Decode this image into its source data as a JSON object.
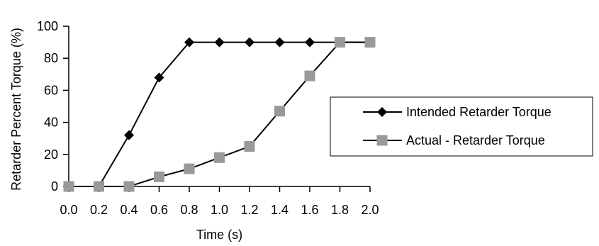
{
  "chart_data": {
    "type": "line",
    "xlabel": "Time (s)",
    "ylabel": "Retarder Percent Torque (%)",
    "x": [
      0.0,
      0.2,
      0.4,
      0.6,
      0.8,
      1.0,
      1.2,
      1.4,
      1.6,
      1.8,
      2.0
    ],
    "x_tick_labels": [
      "0.0",
      "0.2",
      "0.4",
      "0.6",
      "0.8",
      "1.0",
      "1.2",
      "1.4",
      "1.6",
      "1.8",
      "2.0"
    ],
    "xlim": [
      0,
      2
    ],
    "ylim": [
      0,
      100
    ],
    "y_ticks": [
      0,
      20,
      40,
      60,
      80,
      100
    ],
    "grid": false,
    "legend_position": "right",
    "series": [
      {
        "name": "Intended Retarder Torque",
        "marker": "diamond",
        "color": "#000000",
        "values": [
          0,
          0,
          32,
          68,
          90,
          90,
          90,
          90,
          90,
          90,
          90
        ]
      },
      {
        "name": "Actual - Retarder Torque",
        "marker": "square",
        "color": "#999999",
        "values": [
          0,
          0,
          0,
          6,
          11,
          18,
          25,
          47,
          69,
          90,
          90
        ]
      }
    ]
  }
}
